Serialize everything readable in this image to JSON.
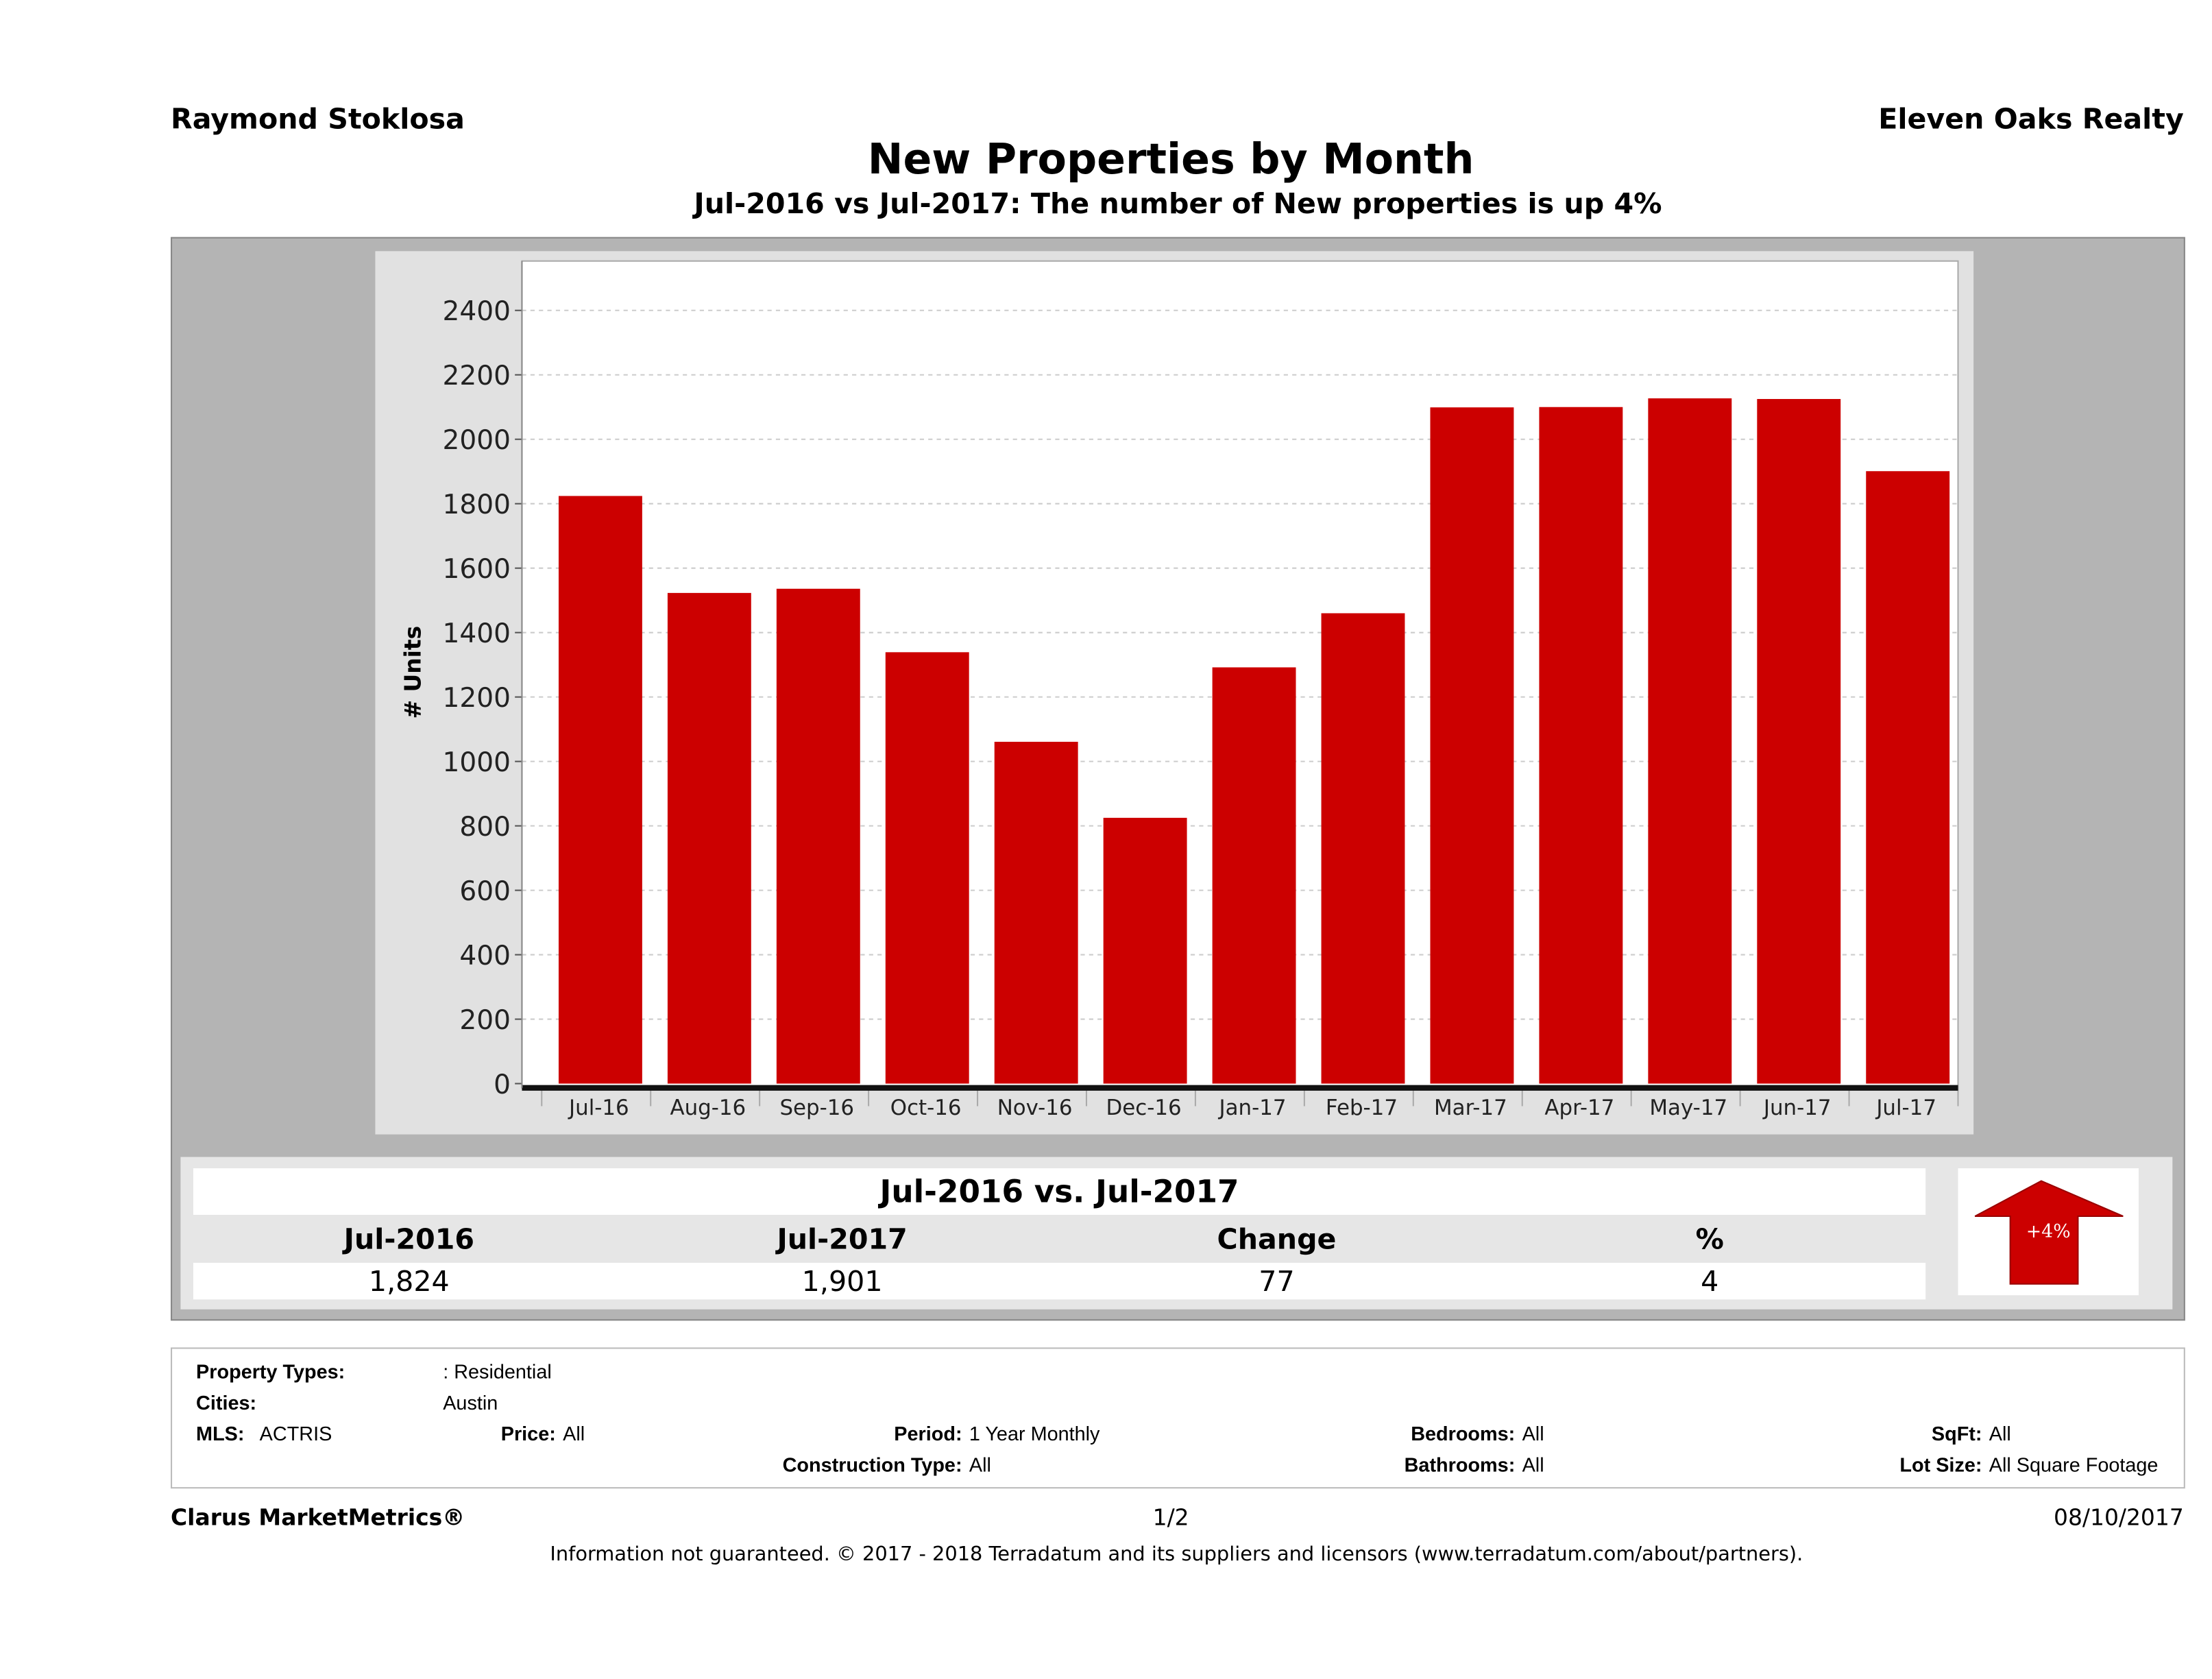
{
  "header": {
    "agent": "Raymond Stoklosa",
    "brokerage": "Eleven Oaks Realty",
    "title": "New Properties by Month",
    "subtitle": "Jul-2016 vs Jul-2017: The number of New  properties is up 4%"
  },
  "chart_data": {
    "type": "bar",
    "title": "New Properties by Month",
    "ylabel": "# Units",
    "xlabel": "",
    "ylim": [
      0,
      2400
    ],
    "yticks": [
      "0",
      "200",
      "400",
      "600",
      "800",
      "1000",
      "1200",
      "1400",
      "1600",
      "1800",
      "2000",
      "2200",
      "2400"
    ],
    "grid": true,
    "bar_color": "#cc0000",
    "categories": [
      "Jul-16",
      "Aug-16",
      "Sep-16",
      "Oct-16",
      "Nov-16",
      "Dec-16",
      "Jan-17",
      "Feb-17",
      "Mar-17",
      "Apr-17",
      "May-17",
      "Jun-17",
      "Jul-17"
    ],
    "values": [
      1824,
      1523,
      1536,
      1339,
      1061,
      825,
      1292,
      1460,
      2099,
      2100,
      2127,
      2125,
      1901
    ]
  },
  "summary": {
    "heading": "Jul-2016 vs. Jul-2017",
    "columns": [
      "Jul-2016",
      "Jul-2017",
      "Change",
      "%"
    ],
    "values": [
      "1,824",
      "1,901",
      "77",
      "4"
    ],
    "badge": "+4%",
    "badge_icon": "up-arrow-icon",
    "badge_color": "#cc0000"
  },
  "filters": {
    "property_types_label": "Property Types:",
    "property_types": ": Residential",
    "cities_label": "Cities:",
    "cities": "Austin",
    "mls_label": "MLS:",
    "mls": "ACTRIS",
    "price_label": "Price:",
    "price": "All",
    "period_label": "Period:",
    "period": "1 Year Monthly",
    "construction_label": "Construction Type:",
    "construction": "All",
    "bedrooms_label": "Bedrooms:",
    "bedrooms": "All",
    "bathrooms_label": "Bathrooms:",
    "bathrooms": "All",
    "sqft_label": "SqFt:",
    "sqft": "All",
    "lot_label": "Lot Size:",
    "lot": "All Square Footage"
  },
  "footer": {
    "product": "Clarus MarketMetrics®",
    "page": "1/2",
    "date": "08/10/2017",
    "disclaimer": "Information not guaranteed. © 2017 - 2018 Terradatum and its suppliers and licensors (www.terradatum.com/about/partners)."
  }
}
